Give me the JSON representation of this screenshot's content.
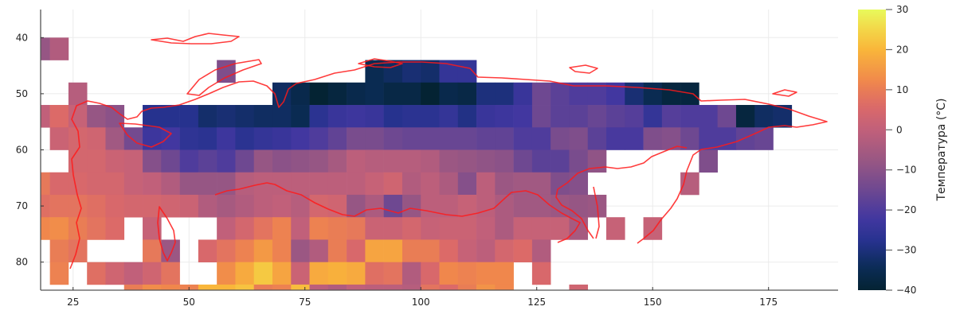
{
  "chart_data": {
    "type": "heatmap",
    "colormap": "thermal",
    "xlim": [
      18,
      190
    ],
    "ylim": [
      35,
      85
    ],
    "y_axis_inverted": true,
    "grid": true,
    "x_ticks": [
      25,
      50,
      75,
      100,
      125,
      150,
      175
    ],
    "y_ticks": [
      40,
      50,
      60,
      70,
      80
    ],
    "x_bin_starts": [
      16,
      20,
      24,
      28,
      32,
      36,
      40,
      44,
      48,
      52,
      56,
      60,
      64,
      68,
      72,
      76,
      80,
      84,
      88,
      92,
      96,
      100,
      104,
      108,
      112,
      116,
      120,
      124,
      128,
      132,
      136,
      140,
      144,
      148,
      152,
      156,
      160,
      164,
      168,
      172,
      176
    ],
    "bin_width": 4,
    "y_bin_starts": [
      40,
      44,
      48,
      52,
      56,
      60,
      64,
      68,
      72,
      76,
      80,
      84
    ],
    "values": [
      [
        -8,
        -3,
        null,
        null,
        null,
        null,
        null,
        null,
        null,
        null,
        null,
        null,
        null,
        null,
        null,
        null,
        null,
        null,
        null,
        null,
        null,
        null,
        null,
        null,
        null,
        null,
        null,
        null,
        null,
        null,
        null,
        null,
        null,
        null,
        null,
        null,
        null,
        null,
        null,
        null,
        null
      ],
      [
        null,
        null,
        null,
        null,
        null,
        null,
        null,
        null,
        null,
        null,
        -12,
        null,
        null,
        null,
        null,
        null,
        null,
        null,
        -35,
        -33,
        -31,
        -32,
        -25,
        -25,
        null,
        null,
        null,
        null,
        null,
        null,
        null,
        null,
        null,
        null,
        null,
        null,
        null,
        null,
        null,
        null,
        null
      ],
      [
        null,
        null,
        -2,
        null,
        null,
        null,
        null,
        null,
        null,
        null,
        null,
        null,
        null,
        -33,
        -36,
        -40,
        -38,
        -36,
        -35,
        -37,
        -37,
        -40,
        -36,
        -37,
        -30,
        -30,
        -24,
        -15,
        -18,
        -20,
        -20,
        -22,
        -31,
        -35,
        -38,
        -38,
        null,
        null,
        null,
        null,
        null
      ],
      [
        0,
        6,
        1,
        -8,
        -10,
        null,
        -28,
        -28,
        -28,
        -32,
        -31,
        -32,
        -33,
        -33,
        -35,
        -27,
        -24,
        -23,
        -24,
        -28,
        -27,
        -27,
        -25,
        -29,
        -24,
        -23,
        -22,
        -15,
        -18,
        -18,
        -16,
        -18,
        -19,
        -25,
        -19,
        -20,
        -20,
        -15,
        -38,
        -33,
        -32
      ],
      [
        null,
        2,
        4,
        3,
        -6,
        -14,
        -23,
        -22,
        -26,
        -27,
        -23,
        -27,
        -25,
        -24,
        -22,
        -20,
        -17,
        -13,
        -13,
        -15,
        -16,
        -16,
        -16,
        -16,
        -17,
        -17,
        -20,
        -20,
        -13,
        -12,
        -18,
        -21,
        -21,
        -12,
        -11,
        -15,
        -20,
        -20,
        -17,
        -16,
        null
      ],
      [
        null,
        null,
        4,
        4,
        2,
        1,
        -11,
        -15,
        -20,
        -18,
        -20,
        -15,
        -8,
        -10,
        -9,
        -8,
        -5,
        -1,
        -2,
        -2,
        -2,
        -3,
        -7,
        -8,
        -9,
        -10,
        -15,
        -18,
        -18,
        -13,
        -9,
        null,
        null,
        null,
        null,
        null,
        -12,
        null,
        null,
        null,
        null
      ],
      [
        9,
        5,
        5,
        4,
        4,
        1,
        0,
        -3,
        -8,
        -8,
        -8,
        -2,
        -1,
        -1,
        -1,
        -1,
        -1,
        -1,
        1,
        3,
        -3,
        -1,
        -4,
        -11,
        -1,
        -7,
        -6,
        -6,
        -12,
        -11,
        null,
        null,
        null,
        null,
        null,
        -2,
        null,
        null,
        null,
        null,
        null
      ],
      [
        7,
        8,
        8,
        7,
        5,
        4,
        4,
        3,
        2,
        -3,
        -5,
        -3,
        -1,
        0,
        -2,
        4,
        3,
        -8,
        -4,
        -15,
        -8,
        -1,
        -1,
        1,
        -1,
        -4,
        -6,
        -6,
        -7,
        -8,
        -7,
        null,
        null,
        null,
        null,
        null,
        null,
        null,
        null,
        null,
        null
      ],
      [
        12,
        13,
        10,
        8,
        6,
        null,
        1,
        null,
        null,
        null,
        0,
        4,
        8,
        11,
        0,
        11,
        10,
        9,
        2,
        2,
        4,
        1,
        2,
        2,
        0,
        -4,
        1,
        1,
        1,
        -5,
        null,
        1,
        null,
        1,
        null,
        null,
        null,
        null,
        null,
        null,
        null
      ],
      [
        null,
        10,
        8,
        null,
        null,
        null,
        9,
        -7,
        null,
        5,
        8,
        11,
        15,
        11,
        -7,
        -3,
        10,
        5,
        17,
        17,
        10,
        10,
        6,
        1,
        -1,
        4,
        6,
        -3,
        null,
        null,
        null,
        null,
        null,
        null,
        null,
        null,
        null,
        null,
        null,
        null,
        null
      ],
      [
        null,
        11,
        null,
        7,
        3,
        0,
        3,
        8,
        null,
        null,
        13,
        18,
        23,
        17,
        2,
        18,
        19,
        18,
        7,
        8,
        -3,
        5,
        12,
        11,
        12,
        12,
        null,
        5,
        null,
        null,
        null,
        null,
        null,
        null,
        null,
        null,
        null,
        null,
        null,
        null,
        null
      ],
      [
        null,
        null,
        null,
        null,
        null,
        10,
        13,
        12,
        11,
        20,
        20,
        22,
        10,
        11,
        21,
        -1,
        -3,
        0,
        -1,
        -1,
        -2,
        8,
        6,
        10,
        14,
        12,
        null,
        null,
        null,
        3,
        null,
        null,
        null,
        null,
        null,
        null,
        null,
        null,
        null,
        null,
        null
      ]
    ],
    "colorbar": {
      "label": "Температура (°C)",
      "range": [
        -40,
        30
      ],
      "ticks": [
        30,
        20,
        10,
        0,
        -10,
        -20,
        -30,
        -40
      ],
      "tick_labels": [
        "30",
        "20",
        "10",
        "0",
        "−10",
        "−20",
        "−30",
        "−40"
      ]
    },
    "overlay": {
      "name": "coastlines",
      "color": "#ff0000"
    }
  }
}
